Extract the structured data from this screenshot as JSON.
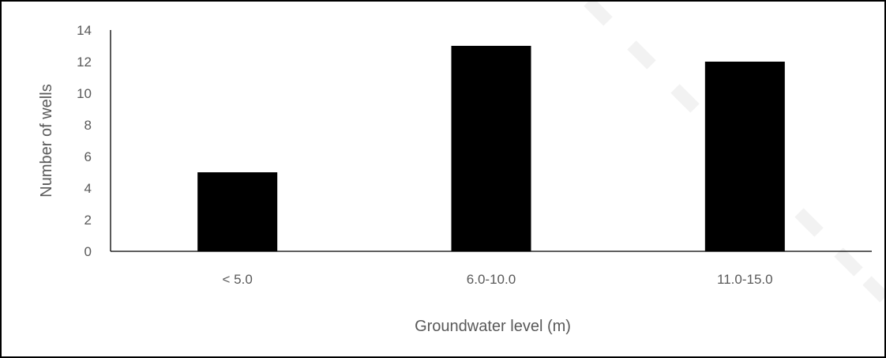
{
  "chart_data": {
    "type": "bar",
    "categories": [
      "< 5.0",
      "6.0-10.0",
      "11.0-15.0"
    ],
    "values": [
      5,
      13,
      12
    ],
    "xlabel": "Groundwater level (m)",
    "ylabel": "Number of wells",
    "ylim": [
      0,
      14
    ],
    "yticks": [
      0,
      2,
      4,
      6,
      8,
      10,
      12,
      14
    ],
    "bar_color": "#000000",
    "axis_color": "#000000",
    "text_color": "#595959",
    "grid": false,
    "legend": "none"
  }
}
